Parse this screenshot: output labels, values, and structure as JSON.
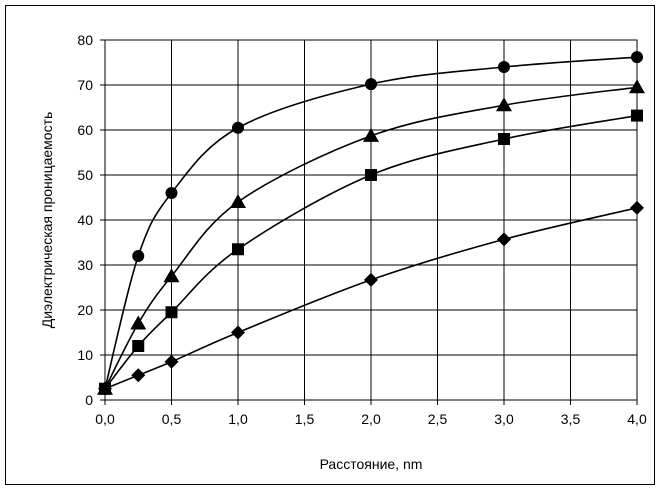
{
  "chart_data": {
    "type": "line",
    "title": "",
    "xlabel": "Расстояние, nm",
    "ylabel": "Диэлектрическая проницаемость",
    "xlim": [
      0,
      4
    ],
    "ylim": [
      0,
      80
    ],
    "x_ticks": [
      "0,0",
      "0,5",
      "1,0",
      "1,5",
      "2,0",
      "2,5",
      "3,0",
      "3,5",
      "4,0"
    ],
    "x_tick_values": [
      0,
      0.5,
      1,
      1.5,
      2,
      2.5,
      3,
      3.5,
      4
    ],
    "y_ticks": [
      "0",
      "10",
      "20",
      "30",
      "40",
      "50",
      "60",
      "70",
      "80"
    ],
    "y_tick_values": [
      0,
      10,
      20,
      30,
      40,
      50,
      60,
      70,
      80
    ],
    "grid": true,
    "legend": "none",
    "series": [
      {
        "marker": "circle",
        "x": [
          0,
          0.25,
          0.5,
          1,
          2,
          3,
          4
        ],
        "y": [
          2.5,
          32,
          46,
          60.5,
          70.2,
          74,
          76.2
        ]
      },
      {
        "marker": "triangle",
        "x": [
          0,
          0.25,
          0.5,
          1,
          2,
          3,
          4
        ],
        "y": [
          2.5,
          17,
          27.5,
          44,
          58.7,
          65.5,
          69.5
        ]
      },
      {
        "marker": "square",
        "x": [
          0,
          0.25,
          0.5,
          1,
          2,
          3,
          4
        ],
        "y": [
          2.5,
          12,
          19.5,
          33.5,
          50,
          58,
          63.2
        ]
      },
      {
        "marker": "diamond",
        "x": [
          0,
          0.25,
          0.5,
          1,
          2,
          3,
          4
        ],
        "y": [
          2.5,
          5.5,
          8.5,
          15,
          26.7,
          35.7,
          42.7
        ]
      }
    ],
    "colors": {
      "line": "#000000",
      "grid": "#000000",
      "background": "#ffffff"
    }
  }
}
